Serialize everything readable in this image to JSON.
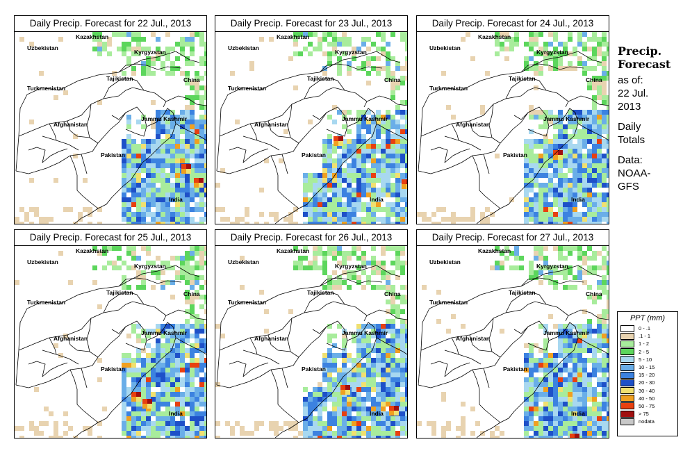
{
  "panels": [
    {
      "title": "Daily Precip. Forecast for  22 Jul., 2013"
    },
    {
      "title": "Daily Precip. Forecast for  23 Jul., 2013"
    },
    {
      "title": "Daily Precip. Forecast for  24 Jul., 2013"
    },
    {
      "title": "Daily Precip. Forecast for  25 Jul., 2013"
    },
    {
      "title": "Daily Precip. Forecast for  26 Jul., 2013"
    },
    {
      "title": "Daily Precip. Forecast for  27 Jul., 2013"
    }
  ],
  "map_labels": {
    "kazakhstan": "Kazakhstan",
    "uzbekistan": "Uzbekistan",
    "kyrgyzstan": "Kyrgyzstan",
    "tajikistan": "Tajikistan",
    "china": "China",
    "turkmenistan": "Turkmenistan",
    "afghanistan": "Afghanistan",
    "jammu_kashmir": "Jammu Kashmir",
    "pakistan": "Pakistan",
    "india": "India"
  },
  "sidebar": {
    "title_line1": "Precip.",
    "title_line2": "Forecast",
    "asof_line1": "as of:",
    "asof_line2": "22 Jul.",
    "asof_line3": "2013",
    "totals_line1": "Daily",
    "totals_line2": "Totals",
    "data_line1": "Data:",
    "data_line2": "NOAA-",
    "data_line3": "GFS"
  },
  "legend": {
    "title": "PPT (mm)",
    "items": [
      {
        "label": "0 - .1",
        "color": "#ffffff"
      },
      {
        "label": ".1 - 1",
        "color": "#e8d3b0"
      },
      {
        "label": "1 - 2",
        "color": "#a8ec9c"
      },
      {
        "label": "2 - 5",
        "color": "#5cd65c"
      },
      {
        "label": "5 - 10",
        "color": "#a8d8f0"
      },
      {
        "label": "10 - 15",
        "color": "#6aaee8"
      },
      {
        "label": "15 - 20",
        "color": "#3c82e0"
      },
      {
        "label": "20 - 30",
        "color": "#1e50c8"
      },
      {
        "label": "30 - 40",
        "color": "#f0e070"
      },
      {
        "label": "40 - 50",
        "color": "#f0a020"
      },
      {
        "label": "50 - 75",
        "color": "#e84010"
      },
      {
        "label": "> 75",
        "color": "#a01010"
      },
      {
        "label": "nodata",
        "color": "#c8c8c8"
      }
    ]
  }
}
